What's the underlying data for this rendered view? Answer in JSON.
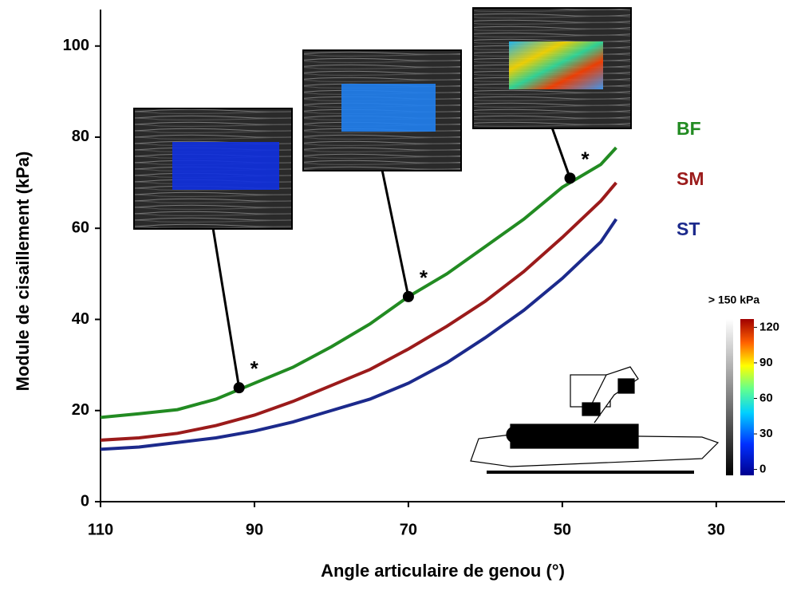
{
  "chart_data": {
    "type": "line",
    "x_label": "Angle articulaire de genou (°)",
    "y_label": "Module de cisaillement (kPa)",
    "x": [
      110,
      105,
      100,
      95,
      90,
      85,
      80,
      75,
      70,
      65,
      60,
      55,
      50,
      45,
      43
    ],
    "series": [
      {
        "name": "BF",
        "color": "#228b22",
        "values": [
          18.5,
          19.3,
          20.2,
          22.5,
          26,
          29.5,
          34,
          39,
          45,
          50,
          56,
          62,
          69,
          74,
          77.7
        ]
      },
      {
        "name": "SM",
        "color": "#9b1b1b",
        "values": [
          13.5,
          14,
          15,
          16.7,
          19,
          22,
          25.5,
          29,
          33.5,
          38.5,
          44,
          50.5,
          58,
          66,
          70
        ]
      },
      {
        "name": "ST",
        "color": "#1c2a8c",
        "values": [
          11.5,
          12,
          13,
          14,
          15.5,
          17.5,
          20,
          22.5,
          26,
          30.5,
          36,
          42,
          49,
          57,
          62
        ]
      }
    ],
    "xlim": [
      110,
      22
    ],
    "xticks": [
      110,
      90,
      70,
      50,
      30
    ],
    "ylim": [
      0,
      108
    ],
    "yticks": [
      0,
      20,
      40,
      60,
      80,
      100
    ],
    "annotations": [
      {
        "x": 92,
        "y": 25,
        "label": "*"
      },
      {
        "x": 70,
        "y": 45,
        "label": "*"
      },
      {
        "x": 49,
        "y": 71,
        "label": "*"
      }
    ],
    "colorbar": {
      "title": "> 150 kPa",
      "lim": [
        -5,
        127
      ],
      "ticks": [
        0,
        30,
        60,
        90,
        120
      ]
    }
  }
}
